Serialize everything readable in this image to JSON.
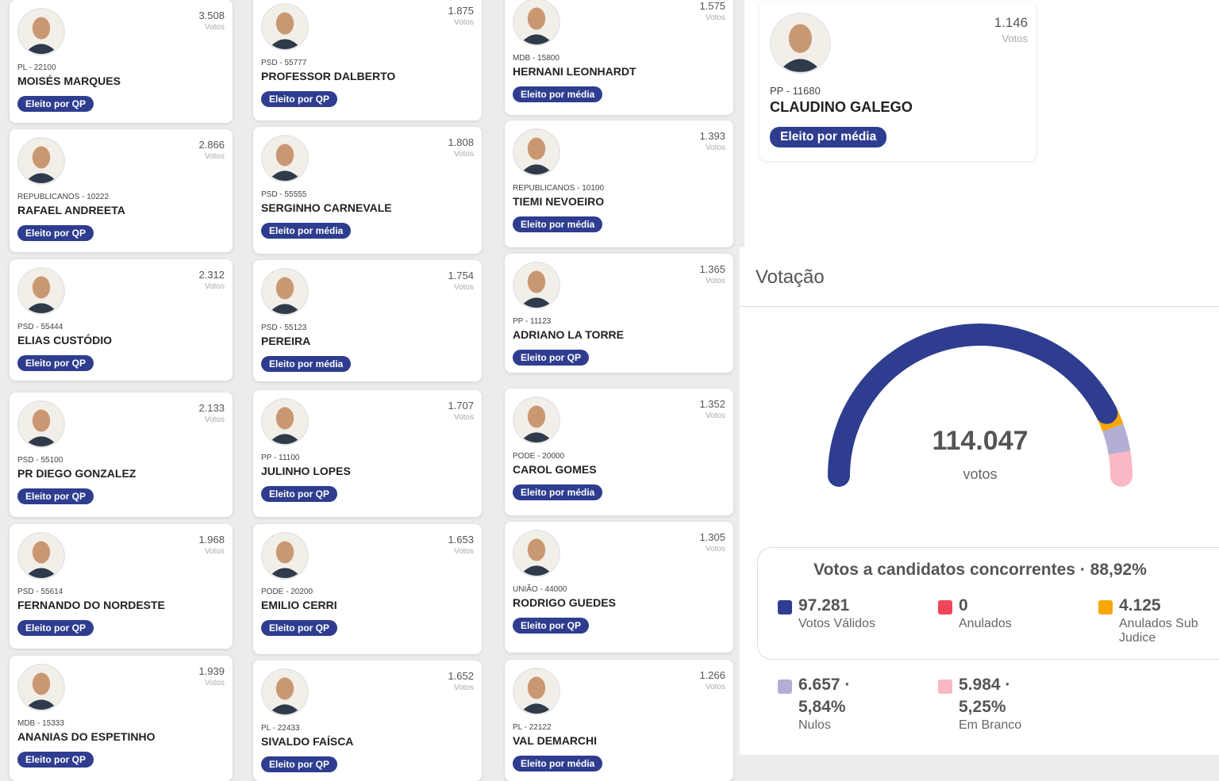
{
  "candidates": [
    {
      "votes": "3.508",
      "votes_label": "Votos",
      "party": "PL - 22100",
      "name": "MOISÉS MARQUES",
      "status": "Eleito por QP"
    },
    {
      "votes": "2.866",
      "votes_label": "Votos",
      "party": "REPUBLICANOS - 10222",
      "name": "RAFAEL ANDREETA",
      "status": "Eleito por QP"
    },
    {
      "votes": "2.312",
      "votes_label": "Votos",
      "party": "PSD - 55444",
      "name": "ELIAS CUSTÓDIO",
      "status": "Eleito por QP"
    },
    {
      "votes": "2.133",
      "votes_label": "Votos",
      "party": "PSD - 55100",
      "name": "PR DIEGO GONZALEZ",
      "status": "Eleito por QP"
    },
    {
      "votes": "1.968",
      "votes_label": "Votos",
      "party": "PSD - 55614",
      "name": "FERNANDO DO NORDESTE",
      "status": "Eleito por QP"
    },
    {
      "votes": "1.939",
      "votes_label": "Votos",
      "party": "MDB - 15333",
      "name": "ANANIAS DO ESPETINHO",
      "status": "Eleito por QP"
    },
    {
      "votes": "1.875",
      "votes_label": "Votos",
      "party": "PSD - 55777",
      "name": "PROFESSOR DALBERTO",
      "status": "Eleito por QP"
    },
    {
      "votes": "1.808",
      "votes_label": "Votos",
      "party": "PSD - 55555",
      "name": "SERGINHO CARNEVALE",
      "status": "Eleito por média"
    },
    {
      "votes": "1.754",
      "votes_label": "Votos",
      "party": "PSD - 55123",
      "name": "PEREIRA",
      "status": "Eleito por média"
    },
    {
      "votes": "1.707",
      "votes_label": "Votos",
      "party": "PP - 11100",
      "name": "JULINHO LOPES",
      "status": "Eleito por QP"
    },
    {
      "votes": "1.653",
      "votes_label": "Votos",
      "party": "PODE - 20200",
      "name": "EMILIO CERRI",
      "status": "Eleito por QP"
    },
    {
      "votes": "1.652",
      "votes_label": "Votos",
      "party": "PL - 22433",
      "name": "SIVALDO FAÍSCA",
      "status": "Eleito por QP"
    },
    {
      "votes": "1.575",
      "votes_label": "Votos",
      "party": "MDB - 15800",
      "name": "HERNANI LEONHARDT",
      "status": "Eleito por média"
    },
    {
      "votes": "1.393",
      "votes_label": "Votos",
      "party": "REPUBLICANOS - 10100",
      "name": "TIEMI NEVOEIRO",
      "status": "Eleito por média"
    },
    {
      "votes": "1.365",
      "votes_label": "Votos",
      "party": "PP - 11123",
      "name": "ADRIANO LA TORRE",
      "status": "Eleito por QP"
    },
    {
      "votes": "1.352",
      "votes_label": "Votos",
      "party": "PODE - 20000",
      "name": "CAROL GOMES",
      "status": "Eleito por média"
    },
    {
      "votes": "1.305",
      "votes_label": "Votos",
      "party": "UNIÃO - 44000",
      "name": "RODRIGO GUEDES",
      "status": "Eleito por QP"
    },
    {
      "votes": "1.266",
      "votes_label": "Votos",
      "party": "PL - 22122",
      "name": "VAL DEMARCHI",
      "status": "Eleito por média"
    },
    {
      "votes": "1.146",
      "votes_label": "Votos",
      "party": "PP - 11680",
      "name": "CLAUDINO GALEGO",
      "status": "Eleito por média"
    }
  ],
  "votacao": {
    "title": "Votação",
    "total": 114047,
    "total_label": "114.047",
    "unit": "votos",
    "subtitle": "Votos a candidatos concorrentes · 88,92%",
    "items": [
      {
        "value": 97281,
        "value_label": "97.281",
        "name": "Votos Válidos",
        "color": "#2e3d8f"
      },
      {
        "value": 0,
        "value_label": "0",
        "name": "Anulados",
        "color": "#f0465a"
      },
      {
        "value": 4125,
        "value_label": "4.125",
        "name": "Anulados Sub Judice",
        "color": "#f7a70a"
      },
      {
        "value": 6657,
        "value_label": "6.657",
        "percent": "5,84%",
        "name": "Nulos",
        "color": "#b3aed6"
      },
      {
        "value": 5984,
        "value_label": "5.984",
        "percent": "5,25%",
        "name": "Em Branco",
        "color": "#f9b8c4"
      }
    ]
  }
}
